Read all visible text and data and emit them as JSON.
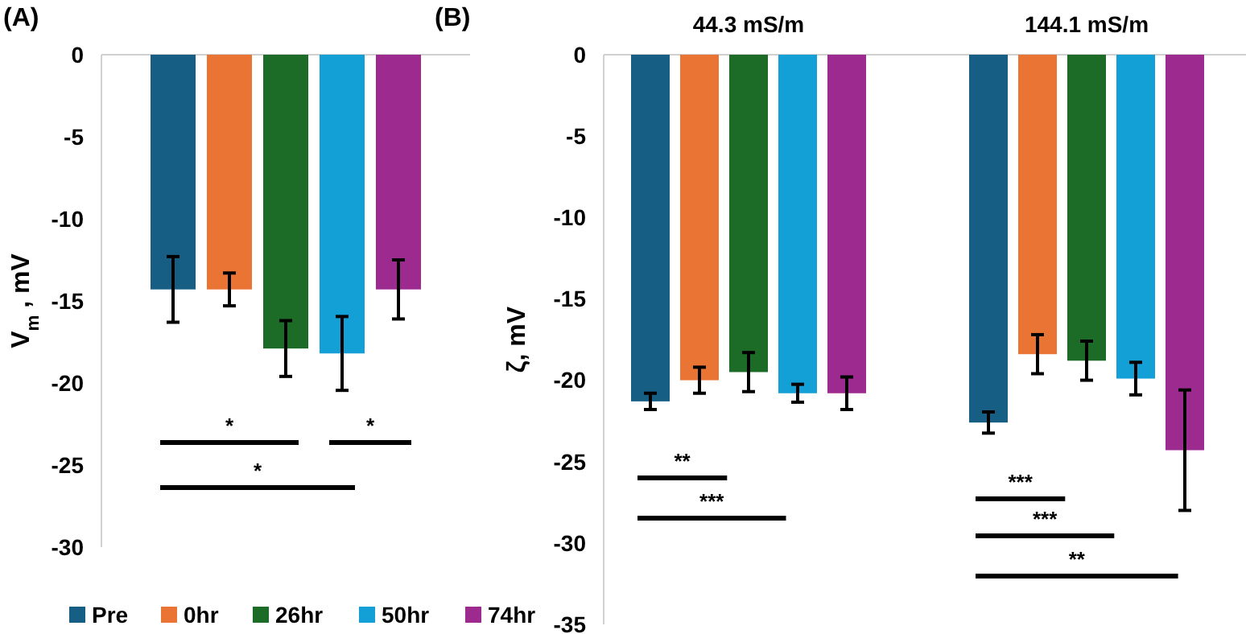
{
  "chart_data": [
    {
      "type": "bar",
      "title": "(A)",
      "ylabel": "V$_{m}$ , mV",
      "categories": [
        null
      ],
      "series": [
        {
          "name": "Pre",
          "color": "#165e83",
          "values": [
            -14.3
          ],
          "errors": [
            2.0
          ]
        },
        {
          "name": "0hr",
          "color": "#ea7434",
          "values": [
            -14.3
          ],
          "errors": [
            1.0
          ]
        },
        {
          "name": "26hr",
          "color": "#1c6b26",
          "values": [
            -17.9
          ],
          "errors": [
            1.7
          ]
        },
        {
          "name": "50hr",
          "color": "#12a0d7",
          "values": [
            -18.2
          ],
          "errors": [
            2.25
          ]
        },
        {
          "name": "74hr",
          "color": "#9c2a8f",
          "values": [
            -14.3
          ],
          "errors": [
            1.8
          ]
        }
      ],
      "ylim": [
        -30,
        0
      ],
      "yticks": [
        0,
        -5,
        -10,
        -15,
        -20,
        -25,
        -30
      ],
      "legend": "bottom",
      "annotations": [
        "*",
        "*",
        "*"
      ]
    },
    {
      "type": "bar",
      "title": "(B)",
      "ylabel": "ζ, mV",
      "categories": [
        "44.3 mS/m",
        "144.1 mS/m"
      ],
      "series": [
        {
          "color": "#165e83",
          "values": [
            -21.3,
            -22.6
          ],
          "errors": [
            0.5,
            0.65
          ]
        },
        {
          "color": "#ea7434",
          "values": [
            -20.0,
            -18.4
          ],
          "errors": [
            0.8,
            1.2
          ]
        },
        {
          "color": "#1c6b26",
          "values": [
            -19.5,
            -18.8
          ],
          "errors": [
            1.2,
            1.2
          ]
        },
        {
          "color": "#12a0d7",
          "values": [
            -20.8,
            -19.9
          ],
          "errors": [
            0.55,
            1.0
          ]
        },
        {
          "color": "#9c2a8f",
          "values": [
            -20.8,
            -24.3
          ],
          "errors": [
            1.0,
            3.7
          ]
        }
      ],
      "ylim": [
        -35,
        0
      ],
      "yticks": [
        0,
        -5,
        -10,
        -15,
        -20,
        -25,
        -30,
        -35
      ],
      "legend": false,
      "annotations": [
        "**",
        "***",
        "***",
        "***",
        "**"
      ]
    }
  ]
}
